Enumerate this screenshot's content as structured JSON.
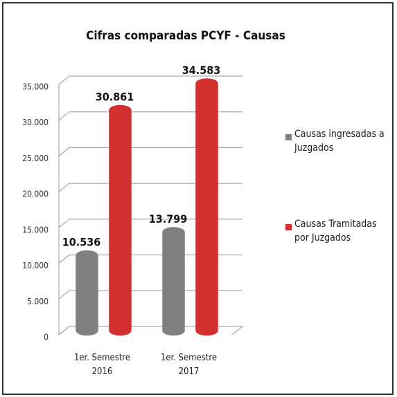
{
  "chart_data": {
    "type": "bar",
    "title": "Cifras comparadas PCYF - Causas",
    "categories": [
      "1er. Semestre 2016",
      "1er. Semestre 2017"
    ],
    "series": [
      {
        "name": "Causas ingresadas a Juzgados",
        "color": "#808080",
        "values": [
          10536,
          13799
        ],
        "value_labels": [
          "10.536",
          "13.799"
        ]
      },
      {
        "name": "Causas Tramitadas por Juzgados",
        "color": "#d22f2f",
        "values": [
          30861,
          34583
        ],
        "value_labels": [
          "30.861",
          "34.583"
        ]
      }
    ],
    "ylim": [
      0,
      35000
    ],
    "yticks": [
      0,
      {
        "value": 5000,
        "label": "5.000"
      },
      {
        "value": 10000,
        "label": "10.000"
      },
      {
        "value": 15000,
        "label": "15.000"
      },
      {
        "value": 20000,
        "label": "20.000"
      },
      {
        "value": 25000,
        "label": "25.000"
      },
      {
        "value": 30000,
        "label": "30.000"
      },
      {
        "value": 35000,
        "label": "35.000"
      }
    ],
    "grid": true,
    "legend": "right"
  }
}
